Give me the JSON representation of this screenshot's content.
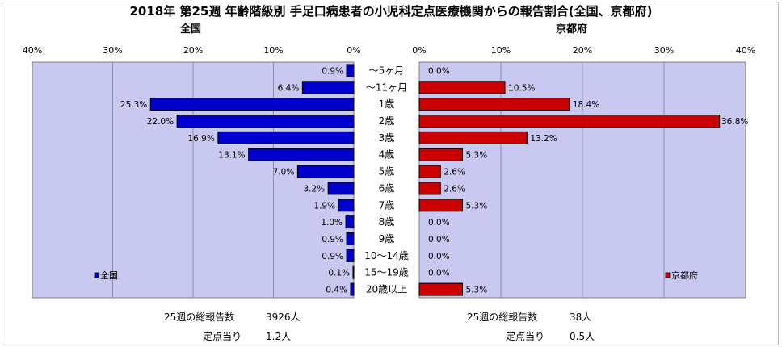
{
  "title": "2018年 第25週 年齢階級別 手足口病患者の小児科定点医療機関からの報告割合(全国、京都府)",
  "chart_data": {
    "type": "bar",
    "orientation": "horizontal",
    "categories": [
      "～5ヶ月",
      "～11ヶ月",
      "1歳",
      "2歳",
      "3歳",
      "4歳",
      "5歳",
      "6歳",
      "7歳",
      "8歳",
      "9歳",
      "10～14歳",
      "15～19歳",
      "20歳以上"
    ],
    "xlim": [
      0,
      40
    ],
    "ticks": [
      "0%",
      "10%",
      "20%",
      "30%",
      "40%"
    ],
    "grid": true,
    "series": [
      {
        "name": "全国",
        "panel": "left",
        "panel_title": "全国",
        "color": "#0000cc",
        "values": [
          0.9,
          6.4,
          25.3,
          22.0,
          16.9,
          13.1,
          7.0,
          3.2,
          1.9,
          1.0,
          0.9,
          0.9,
          0.1,
          0.4
        ],
        "labels": [
          "0.9%",
          "6.4%",
          "25.3%",
          "22.0%",
          "16.9%",
          "13.1%",
          "7.0%",
          "3.2%",
          "1.9%",
          "1.0%",
          "0.9%",
          "0.9%",
          "0.1%",
          "0.4%"
        ],
        "legend": "全国",
        "legend_position": "bottom-left"
      },
      {
        "name": "京都府",
        "panel": "right",
        "panel_title": "京都府",
        "color": "#cc0000",
        "values": [
          0.0,
          10.5,
          18.4,
          36.8,
          13.2,
          5.3,
          2.6,
          2.6,
          5.3,
          0.0,
          0.0,
          0.0,
          0.0,
          5.3
        ],
        "labels": [
          "0.0%",
          "10.5%",
          "18.4%",
          "36.8%",
          "13.2%",
          "5.3%",
          "2.6%",
          "2.6%",
          "5.3%",
          "0.0%",
          "0.0%",
          "0.0%",
          "0.0%",
          "5.3%"
        ],
        "legend": "京都府",
        "legend_position": "bottom-right"
      }
    ],
    "panel_background": "#c8c8f0"
  },
  "summary": {
    "left": {
      "total_label": "25週の総報告数",
      "total_value": "3926人",
      "per_label": "定点当り",
      "per_value": "1.2人"
    },
    "right": {
      "total_label": "25週の総報告数",
      "total_value": "38人",
      "per_label": "定点当り",
      "per_value": "0.5人"
    }
  }
}
